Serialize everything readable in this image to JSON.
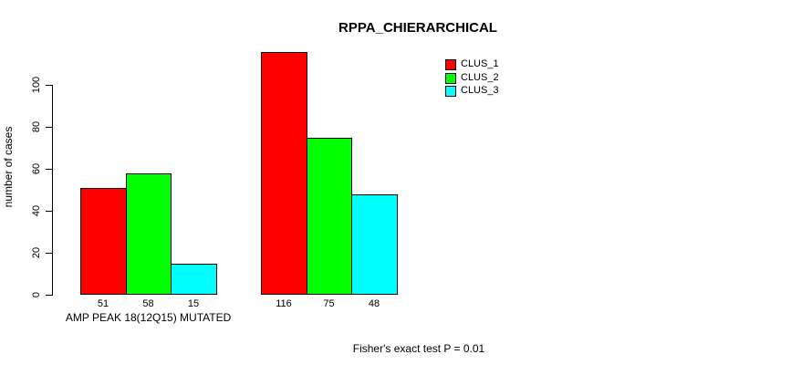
{
  "chart_data": {
    "type": "bar",
    "title": "RPPA_CHIERARCHICAL",
    "ylabel": "number of cases",
    "xlabel": "",
    "ylim": [
      0,
      120
    ],
    "yticks": [
      0,
      20,
      40,
      60,
      80,
      100
    ],
    "grid": false,
    "legend_position": "top-right",
    "series": [
      {
        "name": "CLUS_1",
        "color": "#FF0000"
      },
      {
        "name": "CLUS_2",
        "color": "#00FF00"
      },
      {
        "name": "CLUS_3",
        "color": "#00FFFF"
      }
    ],
    "groups": [
      {
        "label": "AMP PEAK 18(12Q15) MUTATED",
        "values": [
          51,
          58,
          15
        ]
      },
      {
        "label": "",
        "values": [
          116,
          75,
          48
        ]
      }
    ],
    "bar_value_labels": [
      [
        "51",
        "58",
        "15"
      ],
      [
        "116",
        "75",
        "48"
      ]
    ],
    "footnote": "Fisher's exact test P = 0.01"
  }
}
